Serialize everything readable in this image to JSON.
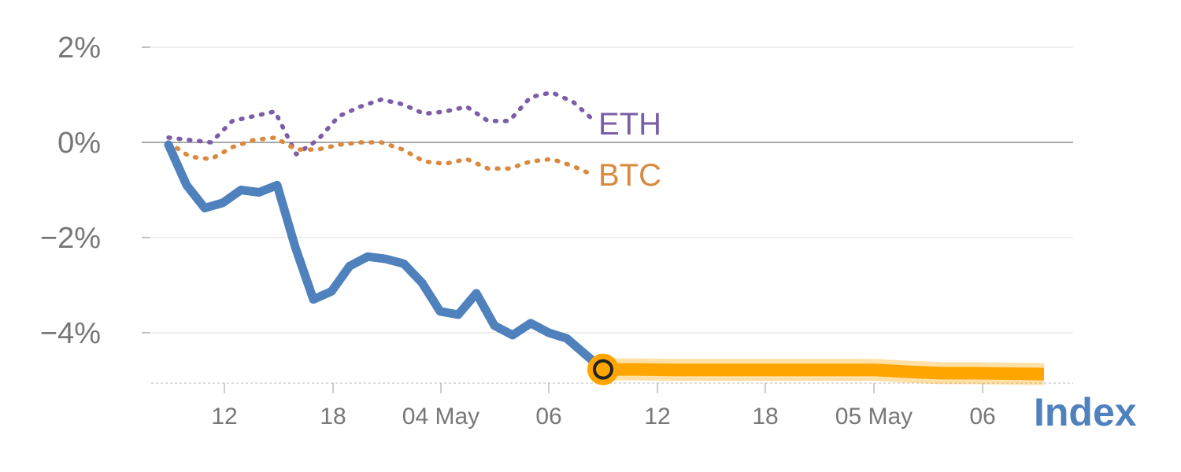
{
  "chart_data": {
    "type": "line",
    "title": "",
    "xlabel": "",
    "ylabel": "",
    "ylim": [
      -5.1,
      2.2
    ],
    "yticks": [
      2,
      0,
      -2,
      -4
    ],
    "ytick_labels": [
      "2%",
      "0%",
      "−2%",
      "−4%"
    ],
    "xtick_labels": [
      "12",
      "18",
      "04 May",
      "06",
      "12",
      "18",
      "05 May",
      "06"
    ],
    "grid": true,
    "series": [
      {
        "name": "ETH",
        "style": "dotted",
        "color": "#7b5ea7",
        "values": [
          0.1,
          0.05,
          0.0,
          0.45,
          0.55,
          0.65,
          -0.25,
          0.05,
          0.55,
          0.75,
          0.9,
          0.8,
          0.6,
          0.65,
          0.75,
          0.45,
          0.45,
          0.95,
          1.05,
          0.85,
          0.45
        ]
      },
      {
        "name": "BTC",
        "style": "dotted",
        "color": "#d98a3e",
        "values": [
          0.0,
          -0.3,
          -0.35,
          -0.1,
          0.05,
          0.1,
          -0.15,
          -0.15,
          -0.05,
          0.0,
          0.0,
          -0.15,
          -0.4,
          -0.45,
          -0.35,
          -0.55,
          -0.55,
          -0.4,
          -0.35,
          -0.5,
          -0.7
        ]
      },
      {
        "name": "Index",
        "style": "solid",
        "color": "#4f81bd",
        "values": [
          -0.05,
          -0.9,
          -1.38,
          -1.27,
          -1.0,
          -1.05,
          -0.9,
          -2.2,
          -3.3,
          -3.13,
          -2.6,
          -2.4,
          -2.45,
          -2.55,
          -2.95,
          -3.55,
          -3.62,
          -3.17,
          -3.85,
          -4.05,
          -3.8,
          -4.0,
          -4.12,
          -4.45,
          -4.77
        ]
      },
      {
        "name": "",
        "style": "projection",
        "color": "#ffa500",
        "values": [
          -4.77,
          -4.77,
          -4.78,
          -4.78,
          -4.78,
          -4.78,
          -4.78,
          -4.78,
          -4.78,
          -4.82,
          -4.85,
          -4.85,
          -4.86,
          -4.87
        ]
      }
    ],
    "labels": {
      "eth": "ETH",
      "btc": "BTC",
      "index": "Index"
    }
  },
  "colors": {
    "grid": "#e3e3e3",
    "zero_line": "#8c8c8c",
    "tick_text": "#777777",
    "bottom_axis": "#d0d0d0",
    "marker_fill": "#ffa500",
    "marker_center": "#222222"
  }
}
